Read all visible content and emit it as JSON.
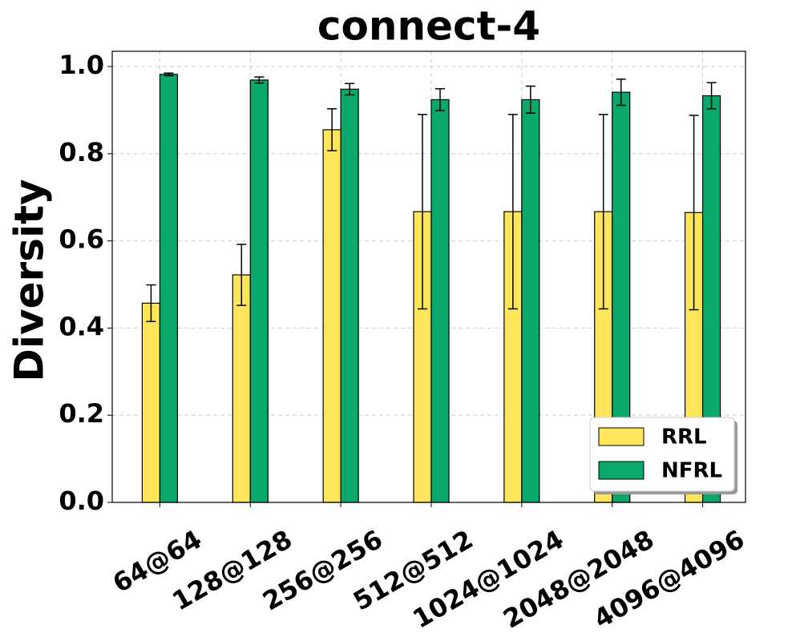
{
  "chart_data": {
    "type": "bar",
    "title": "connect-4",
    "y_label": "Diversity",
    "categories": [
      "64@64",
      "128@128",
      "256@256",
      "512@512",
      "1024@1024",
      "2048@2048",
      "4096@4096"
    ],
    "series": [
      {
        "name": "RRL",
        "color": "#fee55a",
        "values": [
          0.457,
          0.522,
          0.855,
          0.667,
          0.667,
          0.667,
          0.665
        ],
        "errors": [
          0.042,
          0.07,
          0.048,
          0.223,
          0.223,
          0.223,
          0.223
        ]
      },
      {
        "name": "NFRL",
        "color": "#0aa86a",
        "values": [
          0.982,
          0.969,
          0.948,
          0.924,
          0.924,
          0.941,
          0.933
        ],
        "errors": [
          0.003,
          0.007,
          0.013,
          0.025,
          0.031,
          0.03,
          0.03
        ]
      }
    ],
    "ylim": [
      0,
      1.035
    ],
    "yticks": [
      {
        "value": 0,
        "label": "0.0"
      },
      {
        "value": 0.2,
        "label": "0.2"
      },
      {
        "value": 0.4,
        "label": "0.4"
      },
      {
        "value": 0.6,
        "label": "0.6"
      },
      {
        "value": 0.8,
        "label": "0.8"
      },
      {
        "value": 1,
        "label": "1.0"
      }
    ],
    "grid": true,
    "legend": "lower right"
  }
}
